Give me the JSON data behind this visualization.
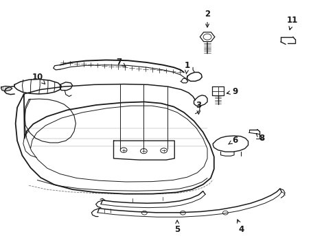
{
  "bg_color": "#ffffff",
  "line_color": "#1a1a1a",
  "figsize": [
    4.89,
    3.6
  ],
  "dpi": 100,
  "labels": {
    "1": {
      "txt": [
        0.558,
        0.735
      ],
      "arrow": [
        0.555,
        0.7
      ]
    },
    "2": {
      "txt": [
        0.618,
        0.945
      ],
      "arrow": [
        0.618,
        0.88
      ]
    },
    "3": {
      "txt": [
        0.592,
        0.575
      ],
      "arrow": [
        0.592,
        0.535
      ]
    },
    "4": {
      "txt": [
        0.72,
        0.068
      ],
      "arrow": [
        0.705,
        0.12
      ]
    },
    "5": {
      "txt": [
        0.528,
        0.068
      ],
      "arrow": [
        0.528,
        0.118
      ]
    },
    "6": {
      "txt": [
        0.7,
        0.432
      ],
      "arrow": [
        0.68,
        0.415
      ]
    },
    "7": {
      "txt": [
        0.355,
        0.75
      ],
      "arrow": [
        0.38,
        0.725
      ]
    },
    "8": {
      "txt": [
        0.78,
        0.44
      ],
      "arrow": [
        0.762,
        0.462
      ]
    },
    "9": {
      "txt": [
        0.7,
        0.63
      ],
      "arrow": [
        0.668,
        0.62
      ]
    },
    "10": {
      "txt": [
        0.112,
        0.688
      ],
      "arrow": [
        0.135,
        0.658
      ]
    },
    "11": {
      "txt": [
        0.872,
        0.92
      ],
      "arrow": [
        0.862,
        0.87
      ]
    }
  }
}
